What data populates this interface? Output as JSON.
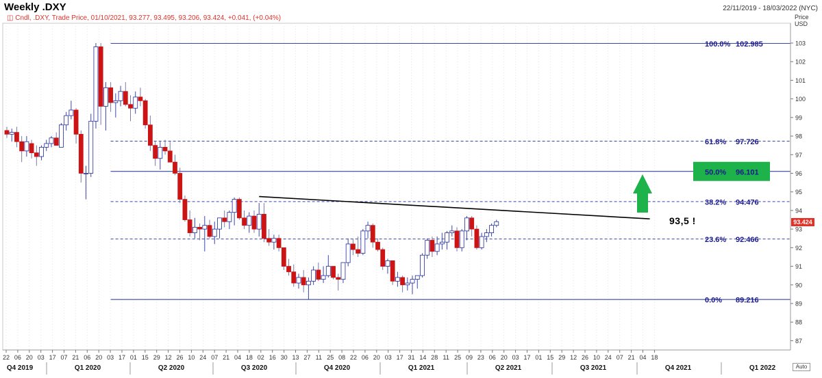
{
  "header": {
    "title": "Weekly .DXY",
    "date_range": "22/11/2019 - 18/03/2022 (NYC)",
    "legend": "Cndl, .DXY, Trade Price, 01/10/2021, 93.277, 93.495, 93.206, 93.424, +0.041, (+0.04%)"
  },
  "axis": {
    "price_label": "Price",
    "currency_label": "USD",
    "current_price_tag": "93.424",
    "auto_button": "Auto"
  },
  "annotation": "93,5 !",
  "colors": {
    "up": "#ffffff",
    "up_border": "#1f2a9e",
    "down": "#cc1414",
    "fib_line": "#1f2a9e",
    "fib_text": "#1a1a8c",
    "highlight_box": "#1db34a",
    "arrow": "#1db34a",
    "trendline": "#000000"
  },
  "chart_data": {
    "type": "candlestick",
    "title": "Weekly .DXY",
    "ylim": [
      86.5,
      104
    ],
    "yticks": [
      87,
      88,
      89,
      90,
      91,
      92,
      93,
      94,
      95,
      96,
      97,
      98,
      99,
      100,
      101,
      102,
      103
    ],
    "ylabel": "Price USD",
    "x_week_labels": [
      "22",
      "06",
      "20",
      "03",
      "17",
      "07",
      "21",
      "06",
      "20",
      "03",
      "17",
      "01",
      "15",
      "29",
      "12",
      "26",
      "10",
      "24",
      "07",
      "21",
      "04",
      "18",
      "02",
      "16",
      "30",
      "13",
      "27",
      "11",
      "25",
      "08",
      "22",
      "06",
      "20",
      "03",
      "17",
      "31",
      "14",
      "28",
      "11",
      "25",
      "09",
      "23",
      "06",
      "20",
      "03",
      "17",
      "01",
      "15",
      "29",
      "12",
      "26",
      "10",
      "24",
      "07",
      "21",
      "04",
      "18"
    ],
    "quarters": [
      "Q4 2019",
      "Q1 2020",
      "Q2 2020",
      "Q3 2020",
      "Q4 2020",
      "Q1 2021",
      "Q2 2021",
      "Q3 2021",
      "Q4 2021",
      "Q1 2022"
    ],
    "fibonacci": [
      {
        "level": "100.0%",
        "value": "102.985",
        "price": 102.985,
        "style": "solid"
      },
      {
        "level": "61.8%",
        "value": "97.726",
        "price": 97.726,
        "style": "dashed"
      },
      {
        "level": "50.0%",
        "value": "96.101",
        "price": 96.101,
        "style": "solid",
        "highlight": true
      },
      {
        "level": "38.2%",
        "value": "94.476",
        "price": 94.476,
        "style": "dashed"
      },
      {
        "level": "23.6%",
        "value": "92.466",
        "price": 92.466,
        "style": "dashed"
      },
      {
        "level": "0.0%",
        "value": "89.216",
        "price": 89.216,
        "style": "solid"
      }
    ],
    "trendline": {
      "start": {
        "week": 51,
        "price": 94.75
      },
      "end": {
        "week": 130,
        "price": 93.55
      }
    },
    "candles": [
      {
        "o": 98.3,
        "h": 98.5,
        "l": 97.9,
        "c": 98.1
      },
      {
        "o": 98.1,
        "h": 98.4,
        "l": 97.7,
        "c": 98.2
      },
      {
        "o": 98.2,
        "h": 98.5,
        "l": 97.4,
        "c": 97.7
      },
      {
        "o": 97.7,
        "h": 98.0,
        "l": 96.6,
        "c": 97.2
      },
      {
        "o": 97.2,
        "h": 98.0,
        "l": 96.9,
        "c": 97.7
      },
      {
        "o": 97.6,
        "h": 97.8,
        "l": 96.8,
        "c": 97.1
      },
      {
        "o": 97.1,
        "h": 97.5,
        "l": 96.4,
        "c": 96.9
      },
      {
        "o": 96.9,
        "h": 97.5,
        "l": 96.7,
        "c": 97.4
      },
      {
        "o": 97.4,
        "h": 97.8,
        "l": 97.2,
        "c": 97.6
      },
      {
        "o": 97.6,
        "h": 98.0,
        "l": 97.4,
        "c": 97.9
      },
      {
        "o": 97.9,
        "h": 98.2,
        "l": 97.5,
        "c": 97.5
      },
      {
        "o": 97.4,
        "h": 98.7,
        "l": 97.4,
        "c": 98.6
      },
      {
        "o": 98.6,
        "h": 99.3,
        "l": 98.3,
        "c": 99.1
      },
      {
        "o": 99.1,
        "h": 99.9,
        "l": 98.9,
        "c": 99.4
      },
      {
        "o": 99.4,
        "h": 99.5,
        "l": 97.6,
        "c": 98.1
      },
      {
        "o": 98.1,
        "h": 98.3,
        "l": 95.5,
        "c": 96.0
      },
      {
        "o": 96.0,
        "h": 96.4,
        "l": 94.6,
        "c": 96.0
      },
      {
        "o": 96.0,
        "h": 99.2,
        "l": 95.8,
        "c": 98.8
      },
      {
        "o": 98.8,
        "h": 103.0,
        "l": 98.4,
        "c": 102.8
      },
      {
        "o": 102.8,
        "h": 103.0,
        "l": 98.6,
        "c": 99.6
      },
      {
        "o": 99.6,
        "h": 100.9,
        "l": 98.3,
        "c": 100.6
      },
      {
        "o": 100.6,
        "h": 100.9,
        "l": 99.3,
        "c": 99.8
      },
      {
        "o": 99.8,
        "h": 100.3,
        "l": 99.0,
        "c": 99.9
      },
      {
        "o": 99.9,
        "h": 100.7,
        "l": 99.6,
        "c": 100.4
      },
      {
        "o": 100.4,
        "h": 100.9,
        "l": 99.6,
        "c": 99.7
      },
      {
        "o": 99.7,
        "h": 100.2,
        "l": 98.8,
        "c": 99.5
      },
      {
        "o": 99.5,
        "h": 100.4,
        "l": 99.2,
        "c": 100.1
      },
      {
        "o": 100.1,
        "h": 100.6,
        "l": 99.6,
        "c": 99.9
      },
      {
        "o": 99.9,
        "h": 100.0,
        "l": 98.4,
        "c": 98.6
      },
      {
        "o": 98.6,
        "h": 99.1,
        "l": 97.2,
        "c": 97.5
      },
      {
        "o": 97.5,
        "h": 97.7,
        "l": 96.4,
        "c": 96.8
      },
      {
        "o": 96.8,
        "h": 97.7,
        "l": 96.2,
        "c": 97.4
      },
      {
        "o": 97.4,
        "h": 97.8,
        "l": 97.0,
        "c": 97.2
      },
      {
        "o": 97.2,
        "h": 97.7,
        "l": 96.7,
        "c": 96.6
      },
      {
        "o": 96.6,
        "h": 97.0,
        "l": 95.9,
        "c": 96.0
      },
      {
        "o": 96.0,
        "h": 96.3,
        "l": 94.4,
        "c": 94.6
      },
      {
        "o": 94.6,
        "h": 94.8,
        "l": 93.4,
        "c": 93.5
      },
      {
        "o": 93.5,
        "h": 94.0,
        "l": 92.6,
        "c": 92.8
      },
      {
        "o": 92.8,
        "h": 93.6,
        "l": 92.5,
        "c": 93.1
      },
      {
        "o": 93.1,
        "h": 93.3,
        "l": 92.4,
        "c": 93.0
      },
      {
        "o": 93.0,
        "h": 93.7,
        "l": 91.8,
        "c": 93.2
      },
      {
        "o": 93.2,
        "h": 93.5,
        "l": 92.5,
        "c": 92.6
      },
      {
        "o": 92.6,
        "h": 93.4,
        "l": 92.2,
        "c": 93.0
      },
      {
        "o": 93.0,
        "h": 93.6,
        "l": 92.5,
        "c": 93.6
      },
      {
        "o": 93.6,
        "h": 94.0,
        "l": 93.1,
        "c": 93.4
      },
      {
        "o": 93.4,
        "h": 94.0,
        "l": 93.0,
        "c": 93.9
      },
      {
        "o": 93.9,
        "h": 94.7,
        "l": 93.2,
        "c": 94.6
      },
      {
        "o": 94.6,
        "h": 94.7,
        "l": 93.5,
        "c": 93.6
      },
      {
        "o": 93.6,
        "h": 94.0,
        "l": 93.0,
        "c": 93.2
      },
      {
        "o": 93.2,
        "h": 93.9,
        "l": 92.8,
        "c": 93.7
      },
      {
        "o": 93.7,
        "h": 94.0,
        "l": 92.8,
        "c": 93.0
      },
      {
        "o": 93.0,
        "h": 94.4,
        "l": 92.6,
        "c": 93.8
      },
      {
        "o": 93.8,
        "h": 94.4,
        "l": 92.3,
        "c": 92.5
      },
      {
        "o": 92.5,
        "h": 93.0,
        "l": 92.1,
        "c": 92.3
      },
      {
        "o": 92.3,
        "h": 92.7,
        "l": 91.9,
        "c": 92.5
      },
      {
        "o": 92.5,
        "h": 92.7,
        "l": 91.8,
        "c": 92.0
      },
      {
        "o": 92.0,
        "h": 92.0,
        "l": 90.8,
        "c": 91.0
      },
      {
        "o": 91.0,
        "h": 91.4,
        "l": 90.5,
        "c": 90.7
      },
      {
        "o": 90.7,
        "h": 91.1,
        "l": 89.9,
        "c": 90.1
      },
      {
        "o": 90.1,
        "h": 90.6,
        "l": 89.8,
        "c": 90.4
      },
      {
        "o": 90.4,
        "h": 90.8,
        "l": 89.6,
        "c": 90.0
      },
      {
        "o": 90.0,
        "h": 90.4,
        "l": 89.2,
        "c": 90.2
      },
      {
        "o": 90.2,
        "h": 91.0,
        "l": 90.0,
        "c": 90.8
      },
      {
        "o": 90.8,
        "h": 91.2,
        "l": 90.2,
        "c": 90.3
      },
      {
        "o": 90.3,
        "h": 91.0,
        "l": 90.1,
        "c": 90.5
      },
      {
        "o": 90.5,
        "h": 91.6,
        "l": 90.4,
        "c": 91.0
      },
      {
        "o": 91.0,
        "h": 91.0,
        "l": 90.3,
        "c": 90.4
      },
      {
        "o": 90.4,
        "h": 90.6,
        "l": 89.7,
        "c": 90.3
      },
      {
        "o": 90.3,
        "h": 91.2,
        "l": 90.1,
        "c": 91.2
      },
      {
        "o": 91.2,
        "h": 92.5,
        "l": 91.0,
        "c": 92.2
      },
      {
        "o": 92.2,
        "h": 92.5,
        "l": 91.6,
        "c": 91.9
      },
      {
        "o": 91.9,
        "h": 92.6,
        "l": 91.5,
        "c": 91.7
      },
      {
        "o": 91.7,
        "h": 93.0,
        "l": 91.6,
        "c": 92.9
      },
      {
        "o": 92.9,
        "h": 93.4,
        "l": 92.5,
        "c": 93.2
      },
      {
        "o": 93.2,
        "h": 93.3,
        "l": 92.0,
        "c": 92.3
      },
      {
        "o": 92.3,
        "h": 92.5,
        "l": 91.8,
        "c": 91.9
      },
      {
        "o": 91.9,
        "h": 92.0,
        "l": 90.8,
        "c": 91.0
      },
      {
        "o": 91.0,
        "h": 91.4,
        "l": 90.6,
        "c": 91.3
      },
      {
        "o": 91.3,
        "h": 91.3,
        "l": 90.0,
        "c": 90.2
      },
      {
        "o": 90.2,
        "h": 90.7,
        "l": 89.9,
        "c": 90.4
      },
      {
        "o": 90.4,
        "h": 90.5,
        "l": 89.6,
        "c": 90.0
      },
      {
        "o": 90.0,
        "h": 90.4,
        "l": 89.7,
        "c": 90.1
      },
      {
        "o": 90.1,
        "h": 90.5,
        "l": 89.5,
        "c": 90.3
      },
      {
        "o": 90.3,
        "h": 90.5,
        "l": 89.8,
        "c": 90.5
      },
      {
        "o": 90.5,
        "h": 91.7,
        "l": 90.4,
        "c": 91.6
      },
      {
        "o": 91.6,
        "h": 92.5,
        "l": 91.4,
        "c": 92.4
      },
      {
        "o": 92.4,
        "h": 92.6,
        "l": 91.5,
        "c": 91.8
      },
      {
        "o": 91.8,
        "h": 92.6,
        "l": 91.6,
        "c": 92.2
      },
      {
        "o": 92.2,
        "h": 92.8,
        "l": 91.9,
        "c": 92.3
      },
      {
        "o": 92.3,
        "h": 92.9,
        "l": 91.9,
        "c": 92.8
      },
      {
        "o": 92.8,
        "h": 93.2,
        "l": 92.6,
        "c": 92.9
      },
      {
        "o": 92.9,
        "h": 93.1,
        "l": 91.8,
        "c": 92.0
      },
      {
        "o": 92.0,
        "h": 93.0,
        "l": 91.8,
        "c": 92.9
      },
      {
        "o": 92.9,
        "h": 93.7,
        "l": 92.4,
        "c": 93.6
      },
      {
        "o": 93.6,
        "h": 93.7,
        "l": 92.6,
        "c": 93.0
      },
      {
        "o": 93.0,
        "h": 93.2,
        "l": 91.9,
        "c": 92.0
      },
      {
        "o": 92.0,
        "h": 92.8,
        "l": 91.9,
        "c": 92.6
      },
      {
        "o": 92.6,
        "h": 93.0,
        "l": 92.3,
        "c": 92.8
      },
      {
        "o": 92.8,
        "h": 93.3,
        "l": 92.6,
        "c": 93.2
      },
      {
        "o": 93.2,
        "h": 93.5,
        "l": 93.1,
        "c": 93.4
      }
    ]
  }
}
